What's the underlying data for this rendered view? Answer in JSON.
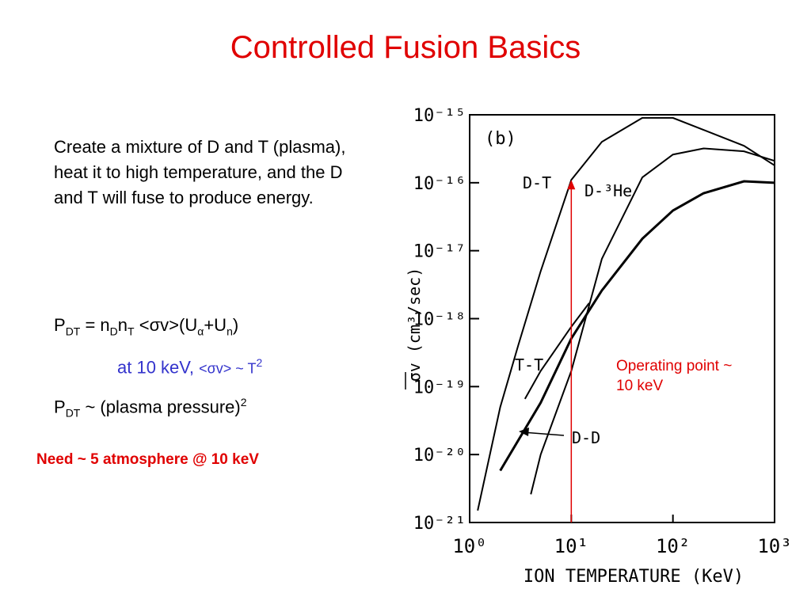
{
  "title": "Controlled Fusion Basics",
  "body": {
    "paragraph": "Create a mixture of D and T (plasma), heat it to high temperature, and the D and T will fuse to produce energy.",
    "formula_1": [
      "P",
      "DT",
      " = n",
      "D",
      "n",
      "T",
      " <σv>(U",
      "α",
      "+U",
      "n",
      ")"
    ],
    "note_1": [
      "at 10 keV, ",
      "<σv> ~ T",
      "2"
    ],
    "formula_2": [
      "P",
      "DT",
      " ~  (plasma pressure)",
      "2"
    ],
    "need": "Need ~ 5 atmosphere @ 10 keV"
  },
  "chart_data": {
    "type": "line",
    "panel_label": "(b)",
    "xlabel": "ION TEMPERATURE (KeV)",
    "ylabel": "σv (cm³/sec)",
    "xlog": true,
    "ylog": true,
    "xlim": [
      1,
      1000
    ],
    "ylim": [
      1e-21,
      1e-15
    ],
    "xticks": [
      {
        "value": 1,
        "label": "10⁰"
      },
      {
        "value": 10,
        "label": "10¹"
      },
      {
        "value": 100,
        "label": "10²"
      },
      {
        "value": 1000,
        "label": "10³"
      }
    ],
    "yticks": [
      {
        "value": 1e-21,
        "label": "10⁻²¹"
      },
      {
        "value": 1e-20,
        "label": "10⁻²⁰"
      },
      {
        "value": 1e-19,
        "label": "10⁻¹⁹"
      },
      {
        "value": 1e-18,
        "label": "10⁻¹⁸"
      },
      {
        "value": 1e-17,
        "label": "10⁻¹⁷"
      },
      {
        "value": 1e-16,
        "label": "10⁻¹⁶"
      },
      {
        "value": 1e-15,
        "label": "10⁻¹⁵"
      }
    ],
    "series": [
      {
        "name": "D-T",
        "color": "#000000",
        "x": [
          1.2,
          2,
          3,
          5,
          10,
          20,
          50,
          100,
          200,
          500,
          1000
        ],
        "values": [
          1.5e-21,
          5e-20,
          4e-19,
          5e-18,
          1.1e-16,
          4e-16,
          9e-16,
          9e-16,
          6e-16,
          3.5e-16,
          1.8e-16
        ]
      },
      {
        "name": "D-³He",
        "color": "#000000",
        "x": [
          4,
          5,
          10,
          20,
          50,
          100,
          200,
          500,
          1000
        ],
        "values": [
          2.6e-21,
          1e-20,
          1.7e-19,
          7.6e-18,
          1.2e-16,
          2.6e-16,
          3.2e-16,
          2.9e-16,
          2.1e-16
        ]
      },
      {
        "name": "T-T",
        "color": "#000000",
        "x": [
          3.5,
          5,
          10,
          15
        ],
        "values": [
          6.6e-20,
          1.7e-19,
          7.6e-19,
          1.7e-18
        ]
      },
      {
        "name": "D-D",
        "color": "#000000",
        "x": [
          2,
          5,
          10,
          20,
          50,
          100,
          200,
          500,
          1000
        ],
        "values": [
          5.8e-21,
          5.8e-20,
          5.1e-19,
          2.6e-18,
          1.5e-17,
          3.9e-17,
          7e-17,
          1.05e-16,
          1e-16
        ]
      }
    ],
    "annotation": {
      "text": "Operating point ~ 10 keV",
      "x": 10,
      "color": "#e00000"
    }
  }
}
